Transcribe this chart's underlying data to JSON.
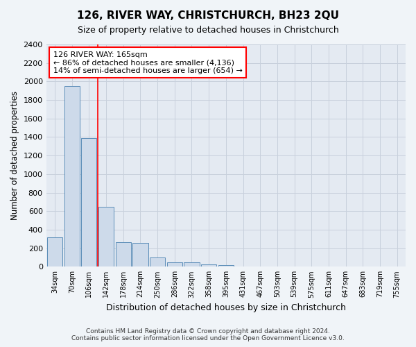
{
  "title": "126, RIVER WAY, CHRISTCHURCH, BH23 2QU",
  "subtitle": "Size of property relative to detached houses in Christchurch",
  "xlabel": "Distribution of detached houses by size in Christchurch",
  "ylabel": "Number of detached properties",
  "categories": [
    "34sqm",
    "70sqm",
    "106sqm",
    "142sqm",
    "178sqm",
    "214sqm",
    "250sqm",
    "286sqm",
    "322sqm",
    "358sqm",
    "395sqm",
    "431sqm",
    "467sqm",
    "503sqm",
    "539sqm",
    "575sqm",
    "611sqm",
    "647sqm",
    "683sqm",
    "719sqm",
    "755sqm"
  ],
  "bar_heights": [
    320,
    1950,
    1390,
    645,
    265,
    255,
    100,
    50,
    45,
    25,
    18,
    0,
    0,
    0,
    0,
    0,
    0,
    0,
    0,
    0,
    0
  ],
  "bar_color": "#cddaea",
  "bar_edge_color": "#5b8db8",
  "red_line_x": 2.5,
  "annotation_line1": "126 RIVER WAY: 165sqm",
  "annotation_line2": "← 86% of detached houses are smaller (4,136)",
  "annotation_line3": "14% of semi-detached houses are larger (654) →",
  "ylim": [
    0,
    2400
  ],
  "yticks": [
    0,
    200,
    400,
    600,
    800,
    1000,
    1200,
    1400,
    1600,
    1800,
    2000,
    2200,
    2400
  ],
  "footnote1": "Contains HM Land Registry data © Crown copyright and database right 2024.",
  "footnote2": "Contains public sector information licensed under the Open Government Licence v3.0.",
  "bg_color": "#f0f4f8",
  "plot_bg_color": "#e4eaf2",
  "grid_color": "#c8d0dc"
}
